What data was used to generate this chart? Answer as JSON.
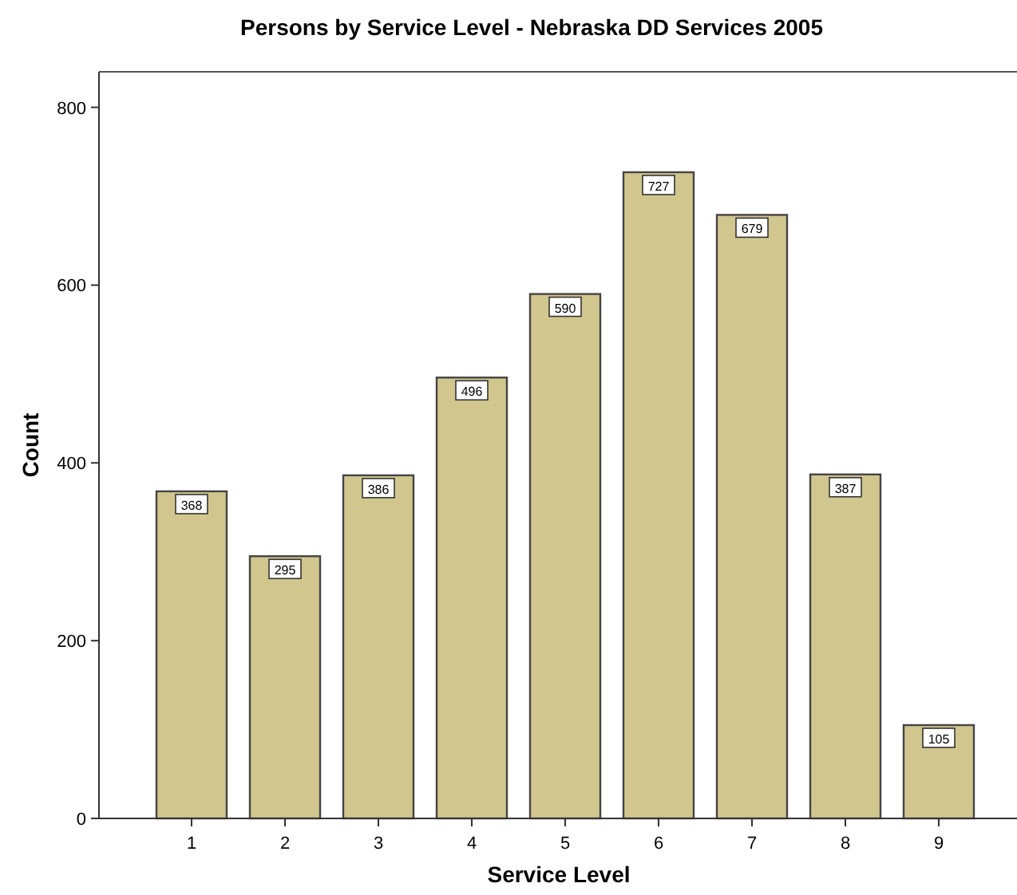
{
  "chart_data": {
    "type": "bar",
    "title": "Persons by Service Level - Nebraska DD Services 2005",
    "xlabel": "Service Level",
    "ylabel": "Count",
    "categories": [
      "1",
      "2",
      "3",
      "4",
      "5",
      "6",
      "7",
      "8",
      "9"
    ],
    "values": [
      368,
      295,
      386,
      496,
      590,
      727,
      679,
      387,
      105
    ],
    "color": "#d1c68e",
    "ylim": [
      0,
      840
    ],
    "yticks": [
      0,
      200,
      400,
      600,
      800
    ],
    "grid": false,
    "data_labels": true
  }
}
